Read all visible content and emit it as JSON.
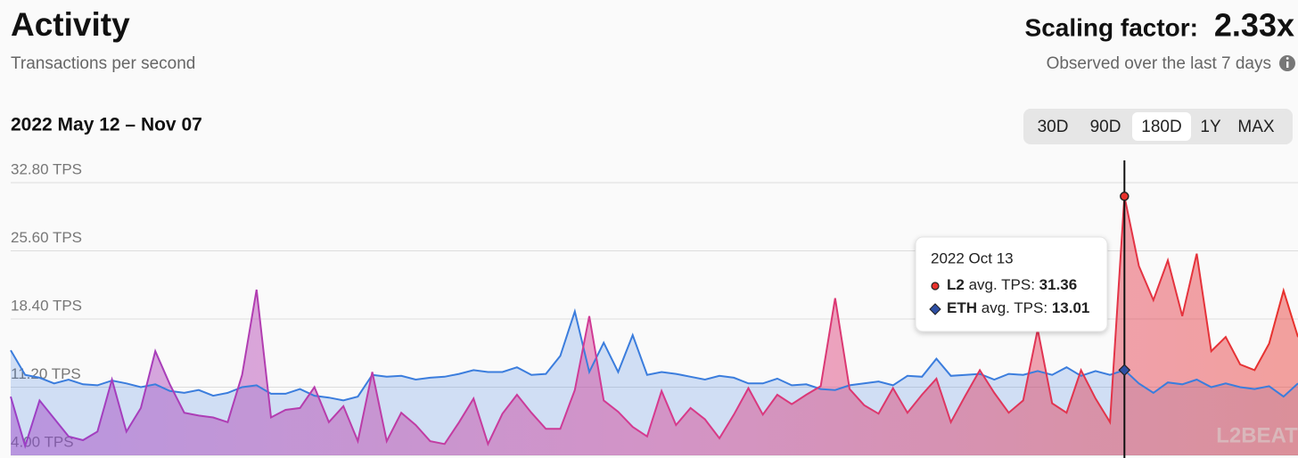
{
  "header": {
    "title": "Activity",
    "subtitle": "Transactions per second",
    "scaling_label": "Scaling factor:",
    "scaling_value": "2.33x",
    "scaling_note": "Observed over the last 7 days",
    "date_range": "2022 May 12 – Nov 07"
  },
  "controls": {
    "buttons": [
      "30D",
      "90D",
      "180D",
      "1Y",
      "MAX"
    ],
    "selected_index": 2
  },
  "tooltip": {
    "date": "2022 Oct 13",
    "label": "avg. TPS:",
    "index": 77
  },
  "watermark": "L2BEAT",
  "chart_data": {
    "type": "line",
    "grid": true,
    "ylim": [
      4,
      32.8
    ],
    "yticks": [
      {
        "value": 4,
        "label": "4.00 TPS"
      },
      {
        "value": 11.2,
        "label": "11.20 TPS"
      },
      {
        "value": 18.4,
        "label": "18.40 TPS"
      },
      {
        "value": 25.6,
        "label": "25.60 TPS"
      },
      {
        "value": 32.8,
        "label": "32.80 TPS"
      }
    ],
    "series": [
      {
        "name": "L2",
        "colors": [
          "#9b3fc6",
          "#d63a8f",
          "#e8312b"
        ],
        "values": [
          10.2,
          5.0,
          9.8,
          7.9,
          6.0,
          5.6,
          6.5,
          12.0,
          6.5,
          9.0,
          15.0,
          11.5,
          8.5,
          8.2,
          8.0,
          7.5,
          12.5,
          21.5,
          8.0,
          8.8,
          9.0,
          11.2,
          7.5,
          9.2,
          5.5,
          12.8,
          5.5,
          8.5,
          7.2,
          5.5,
          5.2,
          7.5,
          10.0,
          5.2,
          8.4,
          10.4,
          8.5,
          6.8,
          6.8,
          10.9,
          18.7,
          9.8,
          8.6,
          7.0,
          6.0,
          10.8,
          7.2,
          9.0,
          7.8,
          5.8,
          8.3,
          11.1,
          8.3,
          10.4,
          9.4,
          10.4,
          11.3,
          20.6,
          11.0,
          9.3,
          8.4,
          11.1,
          8.5,
          10.4,
          12.1,
          7.5,
          10.3,
          13.0,
          10.6,
          8.5,
          9.8,
          17.3,
          9.5,
          8.5,
          13.0,
          10.0,
          7.5,
          31.36,
          24.0,
          20.4,
          24.6,
          18.7,
          25.3,
          15.0,
          16.5,
          13.6,
          13.0,
          15.8,
          21.4,
          16.5
        ]
      },
      {
        "name": "ETH",
        "color": "#3b7ddd",
        "values": [
          15.1,
          12.5,
          12.2,
          11.6,
          12.0,
          11.5,
          11.4,
          11.9,
          11.6,
          11.2,
          11.5,
          10.8,
          10.6,
          10.9,
          10.3,
          10.6,
          11.2,
          11.4,
          10.5,
          10.5,
          11.0,
          10.3,
          10.1,
          9.8,
          10.2,
          12.5,
          12.3,
          12.4,
          12.0,
          12.2,
          12.3,
          12.6,
          13.0,
          12.8,
          12.8,
          13.3,
          12.5,
          12.6,
          14.5,
          19.2,
          12.8,
          15.9,
          12.8,
          16.7,
          12.5,
          12.8,
          12.6,
          12.3,
          12.0,
          12.4,
          12.2,
          11.6,
          11.6,
          12.1,
          11.4,
          11.5,
          11.0,
          10.9,
          11.4,
          11.6,
          11.8,
          11.4,
          12.4,
          12.3,
          14.2,
          12.4,
          12.5,
          12.6,
          12.0,
          12.6,
          12.5,
          12.9,
          12.5,
          13.3,
          12.4,
          12.9,
          12.5,
          13.01,
          11.6,
          10.6,
          11.7,
          11.5,
          12.0,
          11.2,
          11.6,
          11.2,
          11.0,
          11.3,
          10.2,
          11.6
        ]
      }
    ]
  }
}
